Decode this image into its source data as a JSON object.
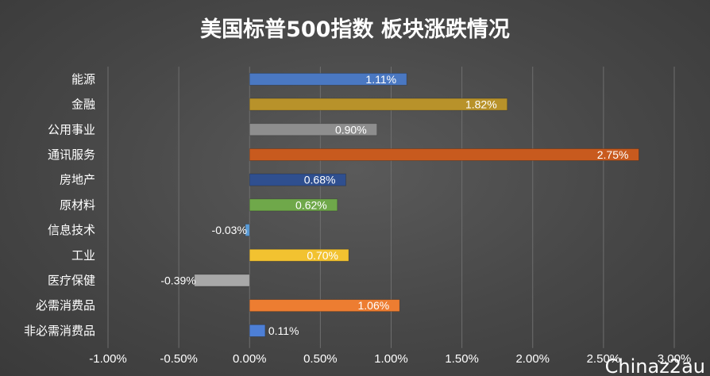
{
  "chart_data": {
    "type": "bar",
    "orientation": "horizontal",
    "title": "美国标普500指数 板块涨跌情况",
    "categories": [
      "能源",
      "金融",
      "公用事业",
      "通讯服务",
      "房地产",
      "原材料",
      "信息技术",
      "工业",
      "医疗保健",
      "必需消费品",
      "非必需消费品"
    ],
    "values": [
      1.11,
      1.82,
      0.9,
      2.75,
      0.68,
      0.62,
      -0.03,
      0.7,
      -0.39,
      1.06,
      0.11
    ],
    "data_labels": [
      "1.11%",
      "1.82%",
      "0.90%",
      "2.75%",
      "0.68%",
      "0.62%",
      "-0.03%",
      "0.70%",
      "-0.39%",
      "1.06%",
      "0.11%"
    ],
    "colors": [
      "#4a78c2",
      "#b8922a",
      "#8e8e8e",
      "#c85a1e",
      "#2f4f8f",
      "#6fa84a",
      "#5b9bd5",
      "#f2c230",
      "#a8a8a8",
      "#ed7d31",
      "#4d7fd6"
    ],
    "xlim": [
      -1.0,
      3.0
    ],
    "ticks": [
      -1.0,
      -0.5,
      0.0,
      0.5,
      1.0,
      1.5,
      2.0,
      2.5,
      3.0
    ],
    "tick_labels": [
      "-1.00%",
      "-0.50%",
      "0.00%",
      "0.50%",
      "1.00%",
      "1.50%",
      "2.00%",
      "2.50%",
      "3.00%"
    ],
    "grid": true,
    "legend": "none"
  },
  "watermark": "Chinaz2au"
}
